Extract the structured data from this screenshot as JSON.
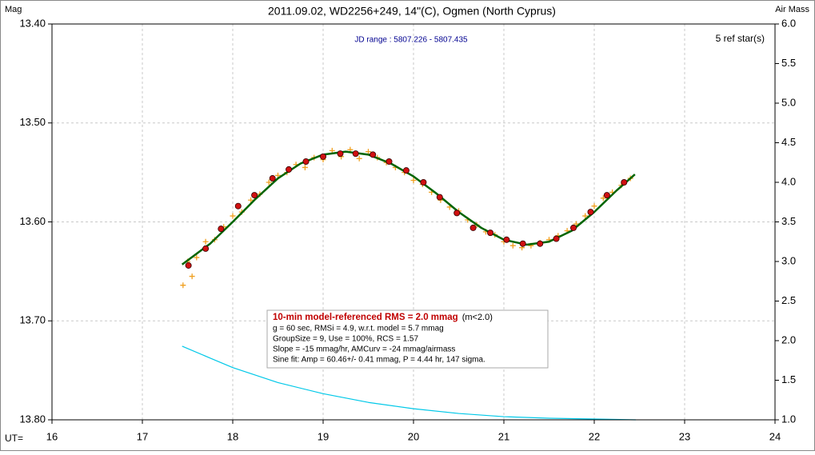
{
  "chart_data": {
    "type": "lightcurve",
    "title": "2011.09.02, WD2256+249, 14\"(C), Ogmen (North Cyprus)",
    "y_label": "Mag",
    "y2_label": "Air Mass",
    "x_label": "UT=",
    "subtitle": "JD range : 5807.226 - 5807.435",
    "ref_note": "5 ref star(s)",
    "info_box": {
      "headline": "10-min model-referenced RMS = 2.0 mmag",
      "headline_note": "(m<2.0)",
      "lines": [
        "g = 60 sec, RMSi = 4.9, w.r.t. model = 5.7 mmag",
        "GroupSize = 9, Use = 100%, RCS = 1.57",
        "Slope = -15 mmag/hr, AMCurv = -24 mmag/airmass",
        "Sine fit: Amp = 60.46+/- 0.41 mmag, P = 4.44 hr, 147 sigma."
      ]
    },
    "xlim": [
      16,
      24
    ],
    "xticks": [
      16,
      17,
      18,
      19,
      20,
      21,
      22,
      23,
      24
    ],
    "ylim": [
      13.4,
      13.8
    ],
    "yticks": [
      {
        "value": 13.4,
        "label": "13.40"
      },
      {
        "value": 13.5,
        "label": "13.50"
      },
      {
        "value": 13.6,
        "label": "13.60"
      },
      {
        "value": 13.7,
        "label": "13.70"
      },
      {
        "value": 13.8,
        "label": "13.80"
      }
    ],
    "y2lim": [
      1.0,
      6.0
    ],
    "y2ticks": [
      {
        "value": 1.0,
        "label": "1.0"
      },
      {
        "value": 1.5,
        "label": "1.5"
      },
      {
        "value": 2.0,
        "label": "2.0"
      },
      {
        "value": 2.5,
        "label": "2.5"
      },
      {
        "value": 3.0,
        "label": "3.0"
      },
      {
        "value": 3.5,
        "label": "3.5"
      },
      {
        "value": 4.0,
        "label": "4.0"
      },
      {
        "value": 4.5,
        "label": "4.5"
      },
      {
        "value": 5.0,
        "label": "5.0"
      },
      {
        "value": 5.5,
        "label": "5.5"
      },
      {
        "value": 6.0,
        "label": "6.0"
      }
    ],
    "grid": true,
    "series": [
      {
        "style": "plus",
        "color": "#f0a020",
        "x": [
          17.45,
          17.5,
          17.55,
          17.6,
          17.7,
          17.8,
          17.9,
          18.0,
          18.1,
          18.2,
          18.3,
          18.4,
          18.5,
          18.6,
          18.7,
          18.8,
          18.9,
          19.0,
          19.1,
          19.2,
          19.3,
          19.4,
          19.5,
          19.6,
          19.7,
          19.8,
          19.9,
          20.0,
          20.1,
          20.2,
          20.3,
          20.4,
          20.5,
          20.6,
          20.7,
          20.8,
          20.9,
          21.0,
          21.1,
          21.2,
          21.3,
          21.4,
          21.5,
          21.6,
          21.7,
          21.8,
          21.9,
          22.0,
          22.1,
          22.2,
          22.3,
          22.4
        ],
        "values": [
          13.664,
          13.64,
          13.655,
          13.636,
          13.62,
          13.618,
          13.605,
          13.594,
          13.59,
          13.578,
          13.572,
          13.56,
          13.553,
          13.55,
          13.542,
          13.545,
          13.535,
          13.537,
          13.528,
          13.534,
          13.527,
          13.536,
          13.529,
          13.535,
          13.54,
          13.545,
          13.55,
          13.558,
          13.562,
          13.57,
          13.578,
          13.585,
          13.589,
          13.598,
          13.603,
          13.61,
          13.613,
          13.62,
          13.624,
          13.626,
          13.624,
          13.621,
          13.618,
          13.614,
          13.609,
          13.602,
          13.594,
          13.584,
          13.576,
          13.57,
          13.563,
          13.556
        ]
      },
      {
        "style": "curve",
        "color": "#00c8e8",
        "axis": "y2",
        "x": [
          17.44,
          17.75,
          18.0,
          18.5,
          19.0,
          19.5,
          20.0,
          20.5,
          21.0,
          21.5,
          22.0,
          22.46
        ],
        "values": [
          1.93,
          1.78,
          1.66,
          1.47,
          1.33,
          1.22,
          1.14,
          1.08,
          1.04,
          1.02,
          1.01,
          1.0
        ]
      },
      {
        "style": "fit",
        "color": "#006400",
        "x": [
          17.44,
          17.75,
          18.0,
          18.25,
          18.5,
          18.75,
          19.0,
          19.25,
          19.5,
          19.75,
          20.0,
          20.25,
          20.5,
          20.75,
          21.0,
          21.25,
          21.5,
          21.75,
          22.0,
          22.25,
          22.45
        ],
        "values": [
          13.643,
          13.622,
          13.6,
          13.577,
          13.556,
          13.541,
          13.532,
          13.529,
          13.532,
          13.541,
          13.554,
          13.571,
          13.59,
          13.606,
          13.618,
          13.623,
          13.62,
          13.609,
          13.59,
          13.568,
          13.552
        ]
      },
      {
        "style": "dot",
        "color": "#d01010",
        "x": [
          17.51,
          17.7,
          17.87,
          18.06,
          18.24,
          18.44,
          18.62,
          18.81,
          19.0,
          19.19,
          19.36,
          19.55,
          19.73,
          19.92,
          20.11,
          20.29,
          20.48,
          20.66,
          20.85,
          21.03,
          21.21,
          21.4,
          21.58,
          21.77,
          21.96,
          22.14,
          22.33
        ],
        "values": [
          13.644,
          13.627,
          13.607,
          13.584,
          13.573,
          13.556,
          13.547,
          13.539,
          13.534,
          13.531,
          13.531,
          13.532,
          13.539,
          13.548,
          13.56,
          13.575,
          13.591,
          13.606,
          13.611,
          13.618,
          13.622,
          13.622,
          13.617,
          13.606,
          13.59,
          13.573,
          13.56
        ]
      }
    ]
  }
}
